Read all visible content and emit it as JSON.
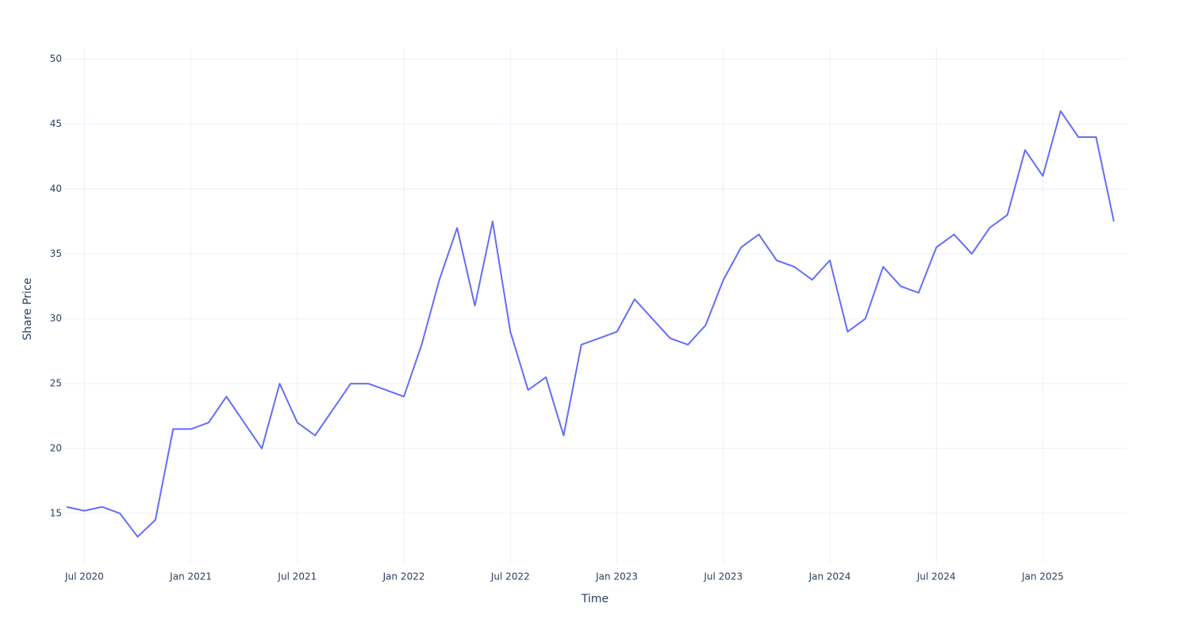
{
  "chart_data": {
    "type": "line",
    "x_label": "Time",
    "y_label": "Share Price",
    "x": [
      "2020-06",
      "2020-07",
      "2020-08",
      "2020-09",
      "2020-10",
      "2020-11",
      "2020-12",
      "2021-01",
      "2021-02",
      "2021-03",
      "2021-04",
      "2021-05",
      "2021-06",
      "2021-07",
      "2021-08",
      "2021-09",
      "2021-10",
      "2021-11",
      "2021-12",
      "2022-01",
      "2022-02",
      "2022-03",
      "2022-04",
      "2022-05",
      "2022-06",
      "2022-07",
      "2022-08",
      "2022-09",
      "2022-10",
      "2022-11",
      "2022-12",
      "2023-01",
      "2023-02",
      "2023-03",
      "2023-04",
      "2023-05",
      "2023-06",
      "2023-07",
      "2023-08",
      "2023-09",
      "2023-10",
      "2023-11",
      "2023-12",
      "2024-01",
      "2024-02",
      "2024-03",
      "2024-04",
      "2024-05",
      "2024-06",
      "2024-07",
      "2024-08",
      "2024-09",
      "2024-10",
      "2024-11",
      "2024-12",
      "2025-01",
      "2025-02",
      "2025-03",
      "2025-04",
      "2025-05"
    ],
    "values": [
      15.5,
      15.2,
      15.5,
      15.0,
      13.2,
      14.5,
      21.5,
      21.5,
      22,
      24,
      22,
      20,
      25,
      22,
      21,
      23,
      25,
      25,
      24.5,
      24,
      28,
      33,
      37,
      31,
      37.5,
      29,
      24.5,
      25.5,
      21,
      28,
      28.5,
      29,
      31.5,
      30,
      28.5,
      28,
      29.5,
      33,
      35.5,
      36.5,
      34.5,
      34,
      33,
      34.5,
      29,
      30,
      34,
      32.5,
      32,
      35.5,
      36.5,
      35,
      37,
      38,
      43,
      41,
      46,
      44,
      44,
      37.5
    ],
    "color": "#636efa",
    "xlim": [
      "2020-06",
      "2025-05"
    ],
    "xticks": [
      {
        "value": "2020-07",
        "label": "Jul 2020"
      },
      {
        "value": "2021-01",
        "label": "Jan 2021"
      },
      {
        "value": "2021-07",
        "label": "Jul 2021"
      },
      {
        "value": "2022-01",
        "label": "Jan 2022"
      },
      {
        "value": "2022-07",
        "label": "Jul 2022"
      },
      {
        "value": "2023-01",
        "label": "Jan 2023"
      },
      {
        "value": "2023-07",
        "label": "Jul 2023"
      },
      {
        "value": "2024-01",
        "label": "Jan 2024"
      },
      {
        "value": "2024-07",
        "label": "Jul 2024"
      },
      {
        "value": "2025-01",
        "label": "Jan 2025"
      }
    ],
    "ylim": [
      11.2,
      50.9
    ],
    "yticks": [
      15,
      20,
      25,
      30,
      35,
      40,
      45,
      50
    ],
    "grid": true
  }
}
